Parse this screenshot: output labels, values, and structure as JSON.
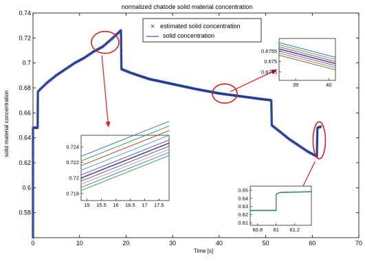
{
  "chart_data": {
    "type": "line",
    "title": "normalized chatode solid material concentration",
    "xlabel": "Time [s]",
    "ylabel": "solid material concentration",
    "xlim": [
      0,
      70
    ],
    "ylim": [
      0.56,
      0.74
    ],
    "xticks": [
      "0",
      "10",
      "20",
      "30",
      "40",
      "50",
      "60",
      "70"
    ],
    "xtick_values": [
      0,
      10,
      20,
      30,
      40,
      50,
      60,
      70
    ],
    "yticks": [
      "0.58",
      "0.6",
      "0.62",
      "0.64",
      "0.66",
      "0.68",
      "0.7",
      "0.72",
      "0.74"
    ],
    "ytick_values": [
      0.58,
      0.6,
      0.62,
      0.64,
      0.66,
      0.68,
      0.7,
      0.72,
      0.74
    ],
    "grid": false,
    "legend": {
      "placement": "top-right",
      "entries": [
        {
          "label": "estimated solid concentration",
          "marker": "x",
          "color": "#1f3a93"
        },
        {
          "label": "solid concentration",
          "marker": "line",
          "color": "#3b5bbf"
        }
      ]
    },
    "series": [
      {
        "name": "estimated solid concentration",
        "points": [
          [
            0,
            0.56
          ],
          [
            0,
            0.575
          ],
          [
            0,
            0.59
          ],
          [
            0,
            0.605
          ],
          [
            0,
            0.62
          ],
          [
            0,
            0.635
          ],
          [
            0,
            0.648
          ],
          [
            1,
            0.648
          ],
          [
            1.05,
            0.677
          ],
          [
            3,
            0.684
          ],
          [
            5,
            0.69
          ],
          [
            7,
            0.695
          ],
          [
            9,
            0.7
          ],
          [
            11,
            0.704
          ],
          [
            13,
            0.709
          ],
          [
            15,
            0.713
          ],
          [
            17,
            0.7195
          ],
          [
            18.9,
            0.726
          ],
          [
            19,
            0.695
          ],
          [
            21,
            0.692
          ],
          [
            25,
            0.687
          ],
          [
            30,
            0.683
          ],
          [
            35,
            0.679
          ],
          [
            40,
            0.6755
          ],
          [
            45,
            0.673
          ],
          [
            49,
            0.671
          ],
          [
            51.2,
            0.67
          ],
          [
            51.3,
            0.65
          ],
          [
            53,
            0.645
          ],
          [
            55,
            0.639
          ],
          [
            57,
            0.634
          ],
          [
            59,
            0.629
          ],
          [
            61,
            0.625
          ],
          [
            61.1,
            0.648
          ],
          [
            62,
            0.649
          ]
        ],
        "color": "#1f3a93"
      },
      {
        "name": "solid concentration",
        "points": [
          [
            0,
            0.648
          ],
          [
            1,
            0.648
          ],
          [
            1.05,
            0.677
          ],
          [
            3,
            0.684
          ],
          [
            5,
            0.69
          ],
          [
            7,
            0.695
          ],
          [
            9,
            0.7
          ],
          [
            11,
            0.704
          ],
          [
            13,
            0.709
          ],
          [
            15,
            0.713
          ],
          [
            17,
            0.7195
          ],
          [
            18.9,
            0.726
          ],
          [
            19,
            0.695
          ],
          [
            21,
            0.692
          ],
          [
            25,
            0.687
          ],
          [
            30,
            0.683
          ],
          [
            35,
            0.679
          ],
          [
            40,
            0.6755
          ],
          [
            45,
            0.673
          ],
          [
            49,
            0.671
          ],
          [
            51.2,
            0.67
          ],
          [
            51.3,
            0.65
          ],
          [
            53,
            0.645
          ],
          [
            55,
            0.639
          ],
          [
            57,
            0.634
          ],
          [
            59,
            0.629
          ],
          [
            61,
            0.625
          ],
          [
            61.1,
            0.648
          ],
          [
            62,
            0.649
          ]
        ],
        "color": "#3b5bbf"
      }
    ],
    "insets": [
      {
        "id": "inset-left",
        "xticks": [
          "15",
          "15.5",
          "16",
          "16.5",
          "17",
          "17.5"
        ],
        "xtick_values": [
          15,
          15.5,
          16,
          16.5,
          17,
          17.5
        ],
        "yticks": [
          "0.718",
          "0.72",
          "0.722",
          "0.724"
        ],
        "ytick_values": [
          0.718,
          0.72,
          0.722,
          0.724
        ],
        "xlim": [
          14.8,
          17.85
        ],
        "ylim": [
          0.7171,
          0.7255
        ],
        "line_slope": [
          0.72,
          0.7245
        ],
        "line_offsets": [
          0.0028,
          0.0022,
          0.0016,
          0.001,
          0.0004,
          0,
          -0.0004,
          -0.0008,
          -0.0012,
          -0.0016
        ]
      },
      {
        "id": "inset-topright",
        "xticks": [
          "39",
          "40"
        ],
        "xtick_values": [
          39,
          40
        ],
        "yticks": [
          "0.6755",
          "0.675",
          "0.6745"
        ],
        "ytick_values": [
          0.6755,
          0.675,
          0.6745
        ],
        "xlim": [
          38.5,
          40.2
        ],
        "ylim": [
          0.6741,
          0.6761
        ],
        "line_slope": [
          0.6756,
          0.6749
        ],
        "line_offsets": [
          0.0003,
          0.0002,
          0.0001,
          0,
          -0.0001,
          -0.0002,
          -0.0003
        ]
      },
      {
        "id": "inset-bottomright",
        "xticks": [
          "60.8",
          "61",
          "61.2"
        ],
        "xtick_values": [
          60.8,
          61,
          61.2
        ],
        "yticks": [
          "0.65",
          "0.64",
          "0.63",
          "0.62",
          "0.61"
        ],
        "ytick_values": [
          0.65,
          0.64,
          0.63,
          0.62,
          0.61
        ],
        "xlim": [
          60.72,
          61.38
        ],
        "ylim": [
          0.607,
          0.655
        ],
        "steps": [
          [
            60.72,
            0.625
          ],
          [
            61.0,
            0.625
          ],
          [
            61.0,
            0.645
          ],
          [
            61.04,
            0.647
          ],
          [
            61.38,
            0.648
          ]
        ]
      }
    ],
    "annotation_color": "#e01b1b",
    "palette": [
      "#1f5fbf",
      "#2a9d4a",
      "#d62728",
      "#17a2a2",
      "#8a2be2",
      "#8c8c00",
      "#555555",
      "#e377c2",
      "#1f77b4",
      "#2ca02c"
    ]
  }
}
